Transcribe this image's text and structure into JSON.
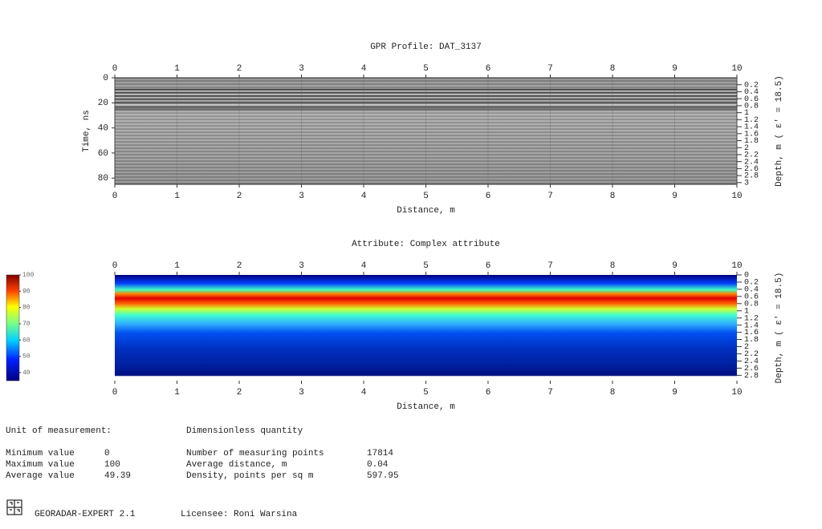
{
  "profile": {
    "title": "GPR Profile: DAT_3137",
    "x_label": "Distance, m",
    "y_label": "Time, ns",
    "y2_label": "Depth, m ( ε′ = 18.5)",
    "xlim": [
      0,
      10
    ],
    "xticks": [
      0,
      1,
      2,
      3,
      4,
      5,
      6,
      7,
      8,
      9,
      10
    ],
    "ylim": [
      0,
      85
    ],
    "yticks": [
      0,
      20,
      40,
      60,
      80
    ],
    "y2lim": [
      0,
      3.05
    ],
    "y2ticks": [
      0.2,
      0.4,
      0.6,
      0.8,
      1,
      1.2,
      1.4,
      1.6,
      1.8,
      2,
      2.2,
      2.4,
      2.6,
      2.8,
      3
    ],
    "grid": true
  },
  "attribute": {
    "title": "Attribute:  Complex attribute",
    "x_label": "Distance, m",
    "y2_label": "Depth, m ( ε′ = 18.5)",
    "xlim": [
      0,
      10
    ],
    "xticks": [
      0,
      1,
      2,
      3,
      4,
      5,
      6,
      7,
      8,
      9,
      10
    ],
    "y2lim": [
      0,
      2.95
    ],
    "y2ticks": [
      0,
      0.2,
      0.4,
      0.6,
      0.8,
      1,
      1.2,
      1.4,
      1.6,
      1.8,
      2,
      2.2,
      2.4,
      2.6,
      2.8
    ]
  },
  "colorbar": {
    "lim": [
      35,
      100
    ],
    "ticks": [
      40,
      50,
      60,
      70,
      80,
      90,
      100
    ]
  },
  "info": {
    "unit_label": "Unit of measurement:",
    "unit": "Dimensionless quantity",
    "left": [
      [
        "Minimum value",
        0
      ],
      [
        "Maximum value",
        100
      ],
      [
        "Average value",
        49.39
      ]
    ],
    "right": [
      [
        "Number of measuring points",
        17814
      ],
      [
        "Average distance, m",
        0.04
      ],
      [
        "Density, points per sq m",
        597.95
      ]
    ]
  },
  "footer": {
    "app": "GEORADAR-EXPERT 2.1",
    "licensee": "Licensee: Roni Warsina"
  }
}
